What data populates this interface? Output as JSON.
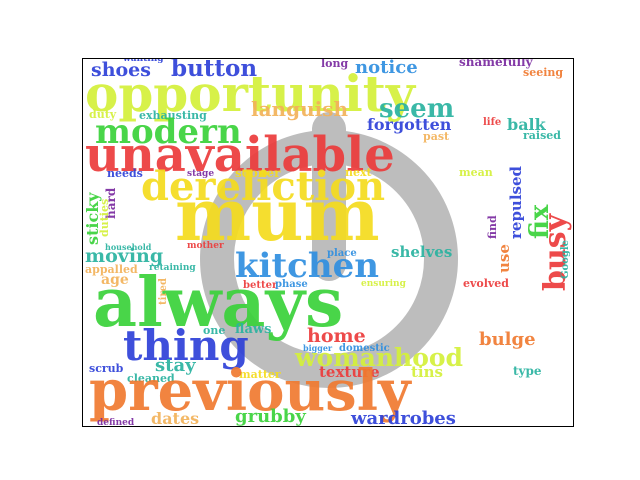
{
  "colors": {
    "lime": "#d4f03a",
    "green": "#3ad23a",
    "red": "#ec3b3b",
    "orange": "#f07a30",
    "yellow": "#f5dc1e",
    "blue": "#2e41d8",
    "sky": "#2f8fe0",
    "teal": "#2ab3a0",
    "peach": "#f3b25a",
    "purple": "#7a2aa0",
    "icon": "#bdbdbd"
  },
  "background_icon": "power-icon",
  "words": [
    {
      "id": "w1",
      "text": "wanting"
    },
    {
      "id": "w2",
      "text": "shoes"
    },
    {
      "id": "w3",
      "text": "button"
    },
    {
      "id": "w4",
      "text": "long"
    },
    {
      "id": "w5",
      "text": "notice"
    },
    {
      "id": "w6",
      "text": "shamefully"
    },
    {
      "id": "w7",
      "text": "seeing"
    },
    {
      "id": "w8",
      "text": "opportunity"
    },
    {
      "id": "w9",
      "text": "languish"
    },
    {
      "id": "w10",
      "text": "seem"
    },
    {
      "id": "w11",
      "text": "duty"
    },
    {
      "id": "w12",
      "text": "exhausting"
    },
    {
      "id": "w13",
      "text": "modern"
    },
    {
      "id": "w14",
      "text": "forgotten"
    },
    {
      "id": "w15",
      "text": "life"
    },
    {
      "id": "w16",
      "text": "balk"
    },
    {
      "id": "w17",
      "text": "past"
    },
    {
      "id": "w18",
      "text": "raised"
    },
    {
      "id": "w19",
      "text": "unavailable"
    },
    {
      "id": "w20",
      "text": "needs"
    },
    {
      "id": "w21",
      "text": "stage"
    },
    {
      "id": "w22",
      "text": "sooner"
    },
    {
      "id": "w23",
      "text": "next"
    },
    {
      "id": "w24",
      "text": "mean"
    },
    {
      "id": "w25",
      "text": "dereliction"
    },
    {
      "id": "w26",
      "text": "mum"
    },
    {
      "id": "w27",
      "text": "sticky"
    },
    {
      "id": "w28",
      "text": "hard"
    },
    {
      "id": "w29",
      "text": "duties"
    },
    {
      "id": "w30",
      "text": "repulsed"
    },
    {
      "id": "w31",
      "text": "fix"
    },
    {
      "id": "w32",
      "text": "busy"
    },
    {
      "id": "w33",
      "text": "find"
    },
    {
      "id": "w34",
      "text": "use"
    },
    {
      "id": "w35",
      "text": "Google"
    },
    {
      "id": "w36",
      "text": "household"
    },
    {
      "id": "w37",
      "text": "mother"
    },
    {
      "id": "w38",
      "text": "place"
    },
    {
      "id": "w39",
      "text": "shelves"
    },
    {
      "id": "w40",
      "text": "moving"
    },
    {
      "id": "w41",
      "text": "appalled"
    },
    {
      "id": "w42",
      "text": "retaining"
    },
    {
      "id": "w43",
      "text": "kitchen"
    },
    {
      "id": "w44",
      "text": "age"
    },
    {
      "id": "w45",
      "text": "better"
    },
    {
      "id": "w46",
      "text": "phase"
    },
    {
      "id": "w47",
      "text": "ensuring"
    },
    {
      "id": "w48",
      "text": "evolved"
    },
    {
      "id": "w49",
      "text": "always"
    },
    {
      "id": "w50",
      "text": "tired"
    },
    {
      "id": "w51",
      "text": "one"
    },
    {
      "id": "w52",
      "text": "flaws"
    },
    {
      "id": "w53",
      "text": "home"
    },
    {
      "id": "w54",
      "text": "bulge"
    },
    {
      "id": "w55",
      "text": "thing"
    },
    {
      "id": "w56",
      "text": "bigger"
    },
    {
      "id": "w57",
      "text": "domestic"
    },
    {
      "id": "w58",
      "text": "womanhood"
    },
    {
      "id": "w59",
      "text": "stay"
    },
    {
      "id": "w60",
      "text": "scrub"
    },
    {
      "id": "w61",
      "text": "matter"
    },
    {
      "id": "w62",
      "text": "texture"
    },
    {
      "id": "w63",
      "text": "tins"
    },
    {
      "id": "w64",
      "text": "type"
    },
    {
      "id": "w65",
      "text": "cleaned"
    },
    {
      "id": "w66",
      "text": "previously"
    },
    {
      "id": "w67",
      "text": "dates"
    },
    {
      "id": "w68",
      "text": "grubby"
    },
    {
      "id": "w69",
      "text": "wardrobes"
    },
    {
      "id": "w70",
      "text": "defined"
    }
  ]
}
